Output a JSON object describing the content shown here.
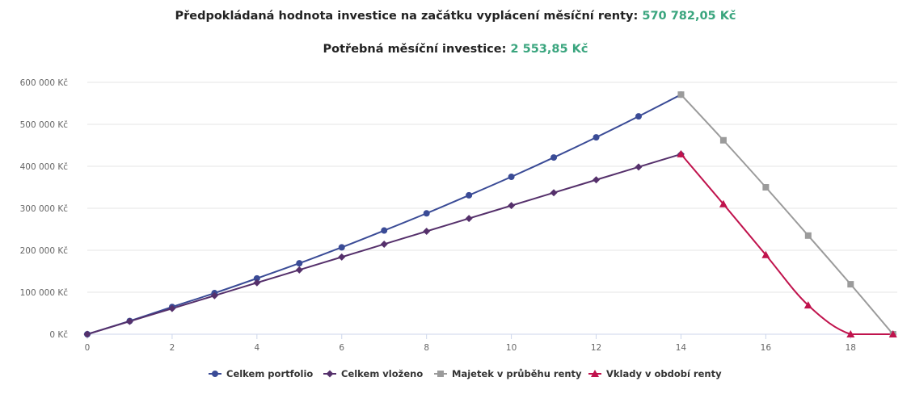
{
  "header": {
    "line1_label": "Předpokládaná hodnota investice na začátku vyplácení měsíční renty:",
    "line1_value": "570 782,05 Kč",
    "line2_label": "Potřebná měsíční investice:",
    "line2_value": "2 553,85 Kč"
  },
  "colors": {
    "value_accent": "#3aa57e",
    "grid": "#e6e6e6",
    "axis": "#ccd6eb"
  },
  "chart_data": {
    "type": "line",
    "title": "",
    "xlabel": "",
    "ylabel": "",
    "xlim": [
      0,
      19.1
    ],
    "ylim": [
      0,
      600000
    ],
    "grid": true,
    "legend_position": "bottom-center",
    "x_ticks": [
      0,
      2,
      4,
      6,
      8,
      10,
      12,
      14,
      16,
      18
    ],
    "y_ticks": [
      0,
      100000,
      200000,
      300000,
      400000,
      500000,
      600000
    ],
    "y_tick_labels": [
      "0 Kč",
      "100 000 Kč",
      "200 000 Kč",
      "300 000 Kč",
      "400 000 Kč",
      "500 000 Kč",
      "600 000 Kč"
    ],
    "series": [
      {
        "name": "Celkem portfolio",
        "color": "#3a4b96",
        "marker": "circle",
        "x": [
          0,
          1,
          2,
          3,
          4,
          5,
          6,
          7,
          8,
          9,
          10,
          11,
          12,
          13,
          14
        ],
        "y": [
          0,
          31500,
          65000,
          98000,
          133000,
          169000,
          207000,
          247000,
          288000,
          331000,
          375000,
          421000,
          469000,
          519000,
          570782
        ]
      },
      {
        "name": "Celkem vloženo",
        "color": "#55306b",
        "marker": "diamond",
        "x": [
          0,
          1,
          2,
          3,
          4,
          5,
          6,
          7,
          8,
          9,
          10,
          11,
          12,
          13,
          14
        ],
        "y": [
          0,
          30646,
          61292,
          91939,
          122585,
          153231,
          183877,
          214523,
          245170,
          275816,
          306462,
          337108,
          367754,
          398401,
          429047
        ]
      },
      {
        "name": "Majetek v průběhu renty",
        "color": "#9b9b9b",
        "marker": "square",
        "x": [
          14,
          15,
          16,
          17,
          18,
          19
        ],
        "y": [
          570782,
          462000,
          350000,
          235000,
          119000,
          0
        ]
      },
      {
        "name": "Vklady v období renty",
        "color": "#c0134d",
        "marker": "triangle",
        "x": [
          14,
          15,
          16,
          17,
          18,
          19
        ],
        "y": [
          429047,
          310000,
          189000,
          69000,
          0,
          0
        ]
      }
    ]
  }
}
